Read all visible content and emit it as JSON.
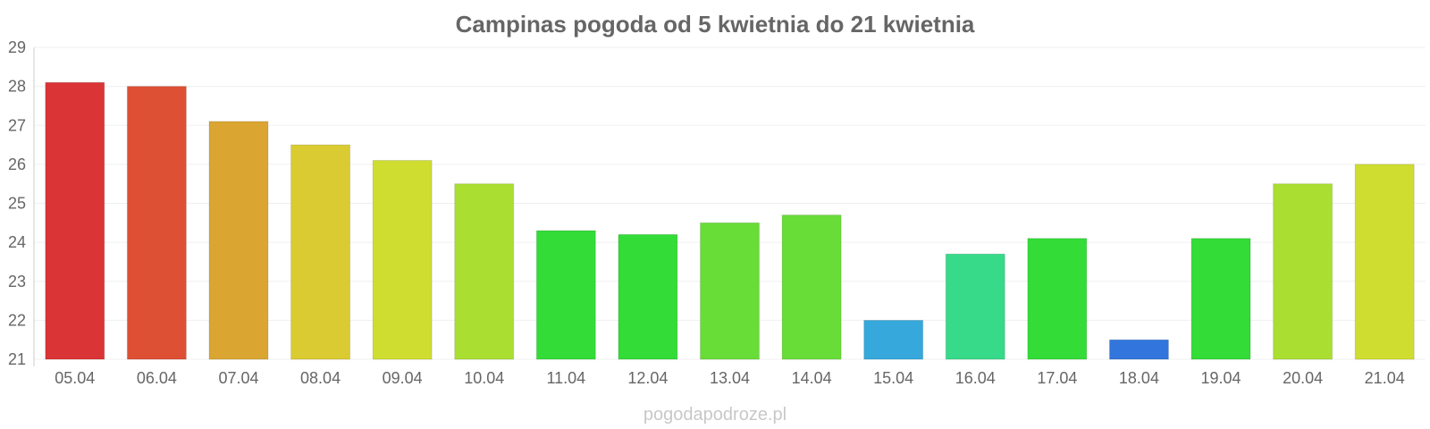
{
  "chart_data": {
    "type": "bar",
    "title": "Campinas pogoda od 5 kwietnia do 21 kwietnia",
    "xlabel": "",
    "ylabel": "",
    "ylim": [
      21,
      29
    ],
    "yticks": [
      21,
      22,
      23,
      24,
      25,
      26,
      27,
      28,
      29
    ],
    "grid": true,
    "categories": [
      "05.04",
      "06.04",
      "07.04",
      "08.04",
      "09.04",
      "10.04",
      "11.04",
      "12.04",
      "13.04",
      "14.04",
      "15.04",
      "16.04",
      "17.04",
      "18.04",
      "19.04",
      "20.04",
      "21.04"
    ],
    "values": [
      28.1,
      28.0,
      27.1,
      26.5,
      26.1,
      25.5,
      24.3,
      24.2,
      24.5,
      24.7,
      22.0,
      23.7,
      24.1,
      21.5,
      24.1,
      25.5,
      26.0
    ],
    "colors": [
      "#da3436",
      "#de5034",
      "#daa631",
      "#dbcb32",
      "#cfdd30",
      "#aadf32",
      "#33dc37",
      "#33dc37",
      "#68dc37",
      "#68dc37",
      "#36a8dc",
      "#36da89",
      "#33dc37",
      "#3275dc",
      "#33dc37",
      "#aadf32",
      "#cfdd30"
    ]
  },
  "watermark": "pogodapodroze.pl"
}
